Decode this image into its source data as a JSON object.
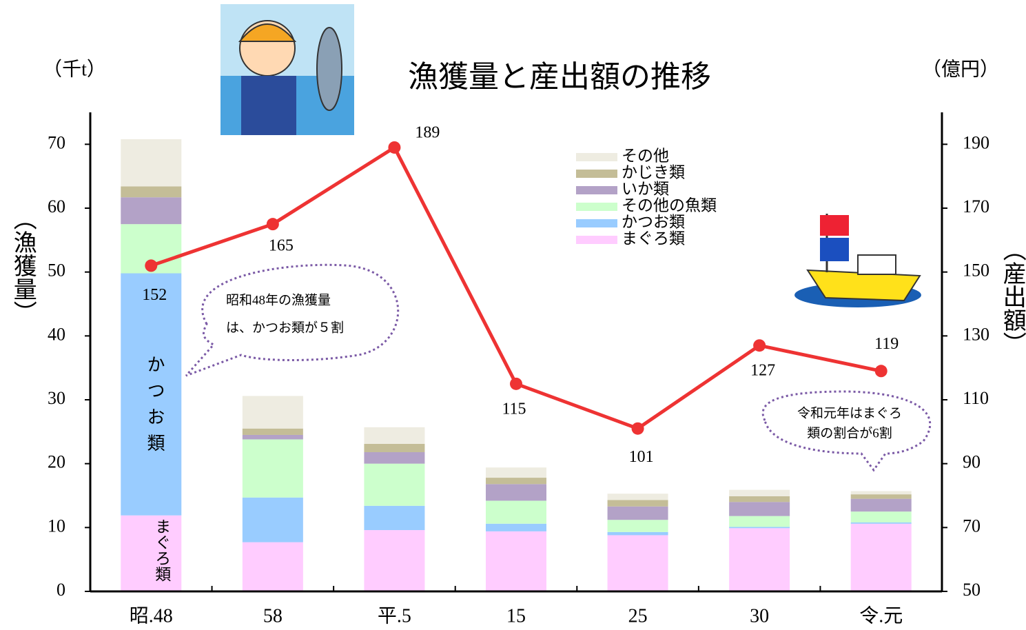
{
  "chart_data": {
    "type": "bar",
    "stacked": true,
    "title": "漁獲量と産出額の推移",
    "y_label": "（漁獲量）",
    "y_unit": "（千t）",
    "y2_label": "（産出額）",
    "y2_unit": "（億円）",
    "categories": [
      "昭.48",
      "58",
      "平.5",
      "15",
      "25",
      "30",
      "令.元"
    ],
    "series": [
      {
        "name": "まぐろ類",
        "color": "#ffccff",
        "values": [
          11.9,
          7.7,
          9.6,
          9.4,
          8.8,
          9.9,
          10.6
        ]
      },
      {
        "name": "かつお類",
        "color": "#99ccff",
        "values": [
          37.9,
          7.0,
          3.8,
          1.2,
          0.5,
          0.2,
          0.2
        ]
      },
      {
        "name": "その他の魚類",
        "color": "#ccffcc",
        "values": [
          7.7,
          9.1,
          6.6,
          3.6,
          1.9,
          1.7,
          1.7
        ]
      },
      {
        "name": "いか類",
        "color": "#b3a2c7",
        "values": [
          4.2,
          0.7,
          1.8,
          2.6,
          2.1,
          2.2,
          2.0
        ]
      },
      {
        "name": "かじき類",
        "color": "#c4bd97",
        "values": [
          1.7,
          1.0,
          1.3,
          1.0,
          1.0,
          0.9,
          0.7
        ]
      },
      {
        "name": "その他",
        "color": "#eeece1",
        "values": [
          7.4,
          5.1,
          2.6,
          1.6,
          1.0,
          1.0,
          0.5
        ]
      }
    ],
    "line": {
      "type": "line",
      "axis": "y2",
      "color": "#ee3333",
      "values": [
        152,
        165,
        189,
        115,
        101,
        127,
        119
      ]
    },
    "ylim": [
      0,
      75
    ],
    "yticks": [
      0,
      10,
      20,
      30,
      40,
      50,
      60,
      70
    ],
    "y2lim": [
      50,
      200
    ],
    "y2ticks": [
      50,
      70,
      90,
      110,
      130,
      150,
      170,
      190
    ],
    "bar_labels": [
      "かつお類",
      "まぐろ類"
    ],
    "callouts": [
      [
        "昭和48年の漁獲量",
        "は、かつお類が５割"
      ],
      [
        "令和元年はまぐろ",
        "類の割合が6割"
      ]
    ],
    "legend": "upper right"
  }
}
